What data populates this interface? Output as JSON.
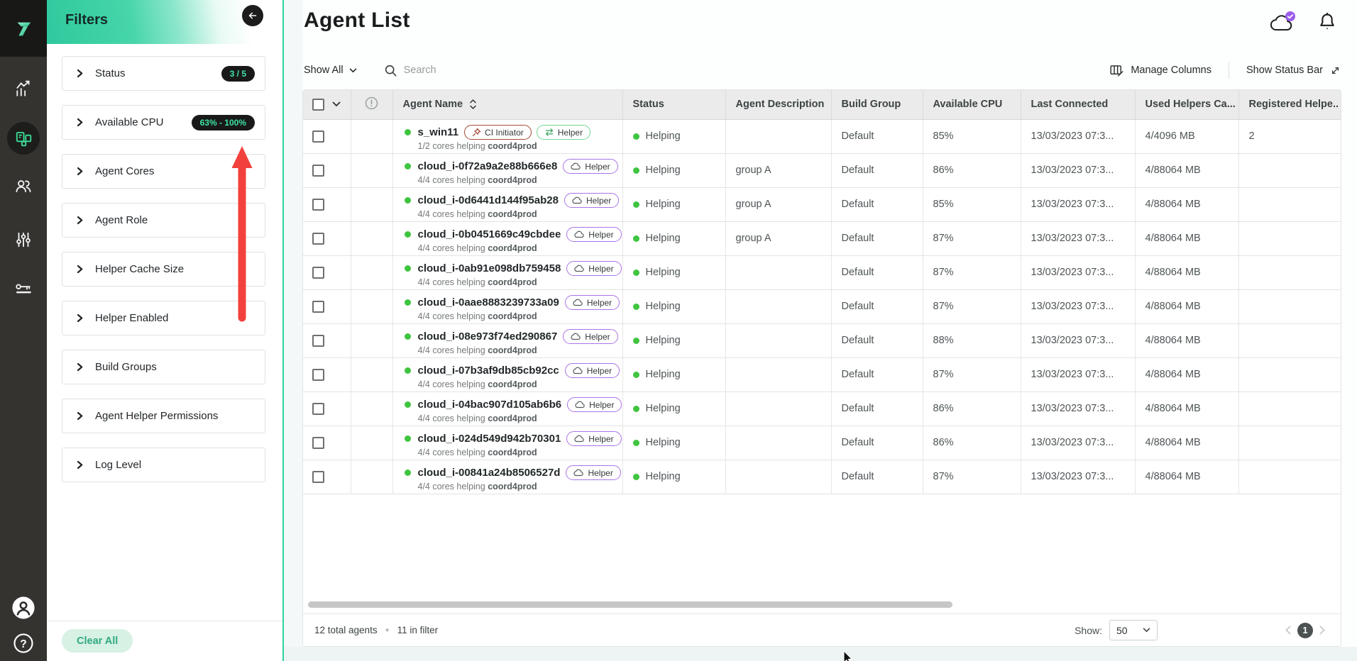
{
  "nav": {
    "icons": [
      "analytics-icon",
      "agents-icon",
      "users-icon",
      "settings-sliders-icon",
      "license-key-icon"
    ],
    "bottom_icons": [
      "user-avatar-icon",
      "help-icon"
    ],
    "active_item": "agents"
  },
  "filters": {
    "title": "Filters",
    "items": [
      {
        "label": "Status",
        "badge": "3 / 5"
      },
      {
        "label": "Available CPU",
        "badge": "63% - 100%"
      },
      {
        "label": "Agent Cores"
      },
      {
        "label": "Agent Role"
      },
      {
        "label": "Helper Cache Size"
      },
      {
        "label": "Helper Enabled"
      },
      {
        "label": "Build Groups"
      },
      {
        "label": "Agent Helper Permissions"
      },
      {
        "label": "Log Level"
      }
    ],
    "clear_all_label": "Clear All",
    "annotation": "red-arrow-pointing-up-at-available-cpu-filter"
  },
  "header": {
    "title": "Agent List",
    "icons": [
      "cloud-connected-icon",
      "notifications-bell-icon"
    ]
  },
  "toolbar": {
    "show_all_label": "Show All",
    "search_placeholder": "Search",
    "manage_columns_label": "Manage Columns",
    "show_status_bar_label": "Show Status Bar"
  },
  "table": {
    "columns": [
      "Agent Name",
      "Status",
      "Agent Description",
      "Build Group",
      "Available CPU",
      "Last Connected",
      "Used Helpers Ca...",
      "Registered Helpe.."
    ],
    "rows": [
      {
        "name": "s_win11",
        "badges": [
          {
            "type": "ci",
            "icon": "pin",
            "label": "CI Initiator"
          },
          {
            "type": "helper-green",
            "icon": "swap",
            "label": "Helper"
          }
        ],
        "cores": "1/2 cores helping",
        "coordinator": "coord4prod",
        "status": "Helping",
        "description": "",
        "build_group": "Default",
        "available_cpu": "85%",
        "last_connected": "13/03/2023 07:3...",
        "used_helpers": "4/4096 MB",
        "registered_helpers": "2"
      },
      {
        "name": "cloud_i-0f72a9a2e88b666e8",
        "badges": [
          {
            "type": "helper-purple",
            "icon": "cloud",
            "label": "Helper"
          }
        ],
        "cores": "4/4 cores helping",
        "coordinator": "coord4prod",
        "status": "Helping",
        "description": "group A",
        "build_group": "Default",
        "available_cpu": "86%",
        "last_connected": "13/03/2023 07:3...",
        "used_helpers": "4/88064 MB",
        "registered_helpers": ""
      },
      {
        "name": "cloud_i-0d6441d144f95ab28",
        "badges": [
          {
            "type": "helper-purple",
            "icon": "cloud",
            "label": "Helper"
          }
        ],
        "cores": "4/4 cores helping",
        "coordinator": "coord4prod",
        "status": "Helping",
        "description": "group A",
        "build_group": "Default",
        "available_cpu": "85%",
        "last_connected": "13/03/2023 07:3...",
        "used_helpers": "4/88064 MB",
        "registered_helpers": ""
      },
      {
        "name": "cloud_i-0b0451669c49cbdee",
        "badges": [
          {
            "type": "helper-purple",
            "icon": "cloud",
            "label": "Helper"
          }
        ],
        "cores": "4/4 cores helping",
        "coordinator": "coord4prod",
        "status": "Helping",
        "description": "group A",
        "build_group": "Default",
        "available_cpu": "87%",
        "last_connected": "13/03/2023 07:3...",
        "used_helpers": "4/88064 MB",
        "registered_helpers": ""
      },
      {
        "name": "cloud_i-0ab91e098db759458",
        "badges": [
          {
            "type": "helper-purple",
            "icon": "cloud",
            "label": "Helper"
          }
        ],
        "cores": "4/4 cores helping",
        "coordinator": "coord4prod",
        "status": "Helping",
        "description": "",
        "build_group": "Default",
        "available_cpu": "87%",
        "last_connected": "13/03/2023 07:3...",
        "used_helpers": "4/88064 MB",
        "registered_helpers": ""
      },
      {
        "name": "cloud_i-0aae8883239733a09",
        "badges": [
          {
            "type": "helper-purple",
            "icon": "cloud",
            "label": "Helper"
          }
        ],
        "cores": "4/4 cores helping",
        "coordinator": "coord4prod",
        "status": "Helping",
        "description": "",
        "build_group": "Default",
        "available_cpu": "87%",
        "last_connected": "13/03/2023 07:3...",
        "used_helpers": "4/88064 MB",
        "registered_helpers": ""
      },
      {
        "name": "cloud_i-08e973f74ed290867",
        "badges": [
          {
            "type": "helper-purple",
            "icon": "cloud",
            "label": "Helper"
          }
        ],
        "cores": "4/4 cores helping",
        "coordinator": "coord4prod",
        "status": "Helping",
        "description": "",
        "build_group": "Default",
        "available_cpu": "88%",
        "last_connected": "13/03/2023 07:3...",
        "used_helpers": "4/88064 MB",
        "registered_helpers": ""
      },
      {
        "name": "cloud_i-07b3af9db85cb92cc",
        "badges": [
          {
            "type": "helper-purple",
            "icon": "cloud",
            "label": "Helper"
          }
        ],
        "cores": "4/4 cores helping",
        "coordinator": "coord4prod",
        "status": "Helping",
        "description": "",
        "build_group": "Default",
        "available_cpu": "87%",
        "last_connected": "13/03/2023 07:3...",
        "used_helpers": "4/88064 MB",
        "registered_helpers": ""
      },
      {
        "name": "cloud_i-04bac907d105ab6b6",
        "badges": [
          {
            "type": "helper-purple",
            "icon": "cloud",
            "label": "Helper"
          }
        ],
        "cores": "4/4 cores helping",
        "coordinator": "coord4prod",
        "status": "Helping",
        "description": "",
        "build_group": "Default",
        "available_cpu": "86%",
        "last_connected": "13/03/2023 07:3...",
        "used_helpers": "4/88064 MB",
        "registered_helpers": ""
      },
      {
        "name": "cloud_i-024d549d942b70301",
        "badges": [
          {
            "type": "helper-purple",
            "icon": "cloud",
            "label": "Helper"
          }
        ],
        "cores": "4/4 cores helping",
        "coordinator": "coord4prod",
        "status": "Helping",
        "description": "",
        "build_group": "Default",
        "available_cpu": "86%",
        "last_connected": "13/03/2023 07:3...",
        "used_helpers": "4/88064 MB",
        "registered_helpers": ""
      },
      {
        "name": "cloud_i-00841a24b8506527d",
        "badges": [
          {
            "type": "helper-purple",
            "icon": "cloud",
            "label": "Helper"
          }
        ],
        "cores": "4/4 cores helping",
        "coordinator": "coord4prod",
        "status": "Helping",
        "description": "",
        "build_group": "Default",
        "available_cpu": "87%",
        "last_connected": "13/03/2023 07:3...",
        "used_helpers": "4/88064 MB",
        "registered_helpers": ""
      }
    ]
  },
  "footer": {
    "total_label": "12 total agents",
    "filter_label": "11 in filter",
    "show_label": "Show:",
    "page_size": "50",
    "current_page": "1"
  },
  "colors": {
    "accent_green": "#2fd3a2",
    "filter_badge_bg": "#191919",
    "filter_badge_text": "#3ce3a4",
    "status_dot": "#3fc43f",
    "ci_badge_border": "#a44a35",
    "helper_green_border": "#74d693",
    "helper_purple_border": "#aa74e8",
    "annotation_arrow": "#f2413d",
    "notification_badge": "#9b5cf0"
  }
}
